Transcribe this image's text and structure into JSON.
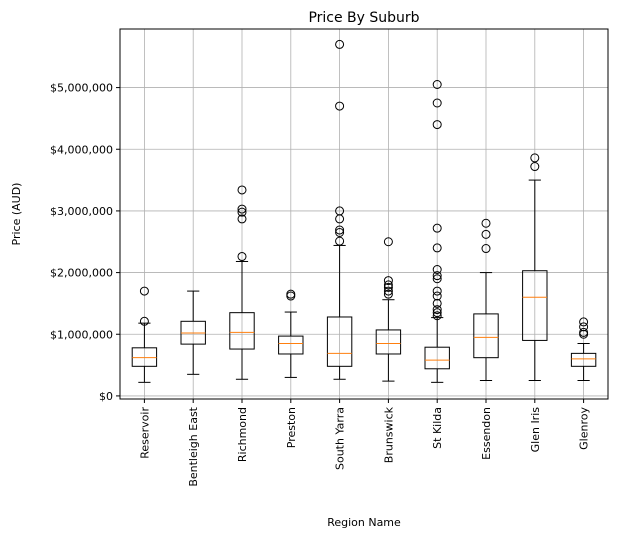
{
  "chart_data": {
    "type": "box",
    "title": "Price By Suburb",
    "xlabel": "Region Name",
    "ylabel": "Price (AUD)",
    "ylim": [
      -50000,
      5950000
    ],
    "yticks": [
      0,
      1000000,
      2000000,
      3000000,
      4000000,
      5000000
    ],
    "ytick_labels": [
      "$0",
      "$1,000,000",
      "$2,000,000",
      "$3,000,000",
      "$4,000,000",
      "$5,000,000"
    ],
    "grid": true,
    "box_color": "#000000",
    "median_color": "#ff7f0e",
    "grid_color": "#b0b0b0",
    "categories": [
      "Reservoir",
      "Bentleigh East",
      "Richmond",
      "Preston",
      "South Yarra",
      "Brunswick",
      "St Kilda",
      "Essendon",
      "Glen Iris",
      "Glenroy"
    ],
    "boxes": [
      {
        "whisker_low": 220000,
        "q1": 480000,
        "median": 620000,
        "q3": 780000,
        "whisker_high": 1180000,
        "outliers": [
          1210000,
          1700000
        ]
      },
      {
        "whisker_low": 350000,
        "q1": 840000,
        "median": 1020000,
        "q3": 1210000,
        "whisker_high": 1700000,
        "outliers": []
      },
      {
        "whisker_low": 270000,
        "q1": 760000,
        "median": 1030000,
        "q3": 1350000,
        "whisker_high": 2180000,
        "outliers": [
          2260000,
          2870000,
          2980000,
          3030000,
          3340000
        ]
      },
      {
        "whisker_low": 300000,
        "q1": 680000,
        "median": 850000,
        "q3": 970000,
        "whisker_high": 1360000,
        "outliers": [
          1620000,
          1650000
        ]
      },
      {
        "whisker_low": 270000,
        "q1": 480000,
        "median": 690000,
        "q3": 1280000,
        "whisker_high": 2440000,
        "outliers": [
          2510000,
          2650000,
          2690000,
          2870000,
          3000000,
          4700000,
          5700000
        ]
      },
      {
        "whisker_low": 240000,
        "q1": 680000,
        "median": 850000,
        "q3": 1070000,
        "whisker_high": 1560000,
        "outliers": [
          1650000,
          1700000,
          1760000,
          1800000,
          1870000,
          2500000
        ]
      },
      {
        "whisker_low": 220000,
        "q1": 440000,
        "median": 580000,
        "q3": 790000,
        "whisker_high": 1270000,
        "outliers": [
          1300000,
          1350000,
          1400000,
          1500000,
          1620000,
          1700000,
          1900000,
          1950000,
          2050000,
          2400000,
          2720000,
          4400000,
          4750000,
          5050000
        ]
      },
      {
        "whisker_low": 250000,
        "q1": 620000,
        "median": 950000,
        "q3": 1330000,
        "whisker_high": 2000000,
        "outliers": [
          2390000,
          2620000,
          2800000
        ]
      },
      {
        "whisker_low": 250000,
        "q1": 900000,
        "median": 1600000,
        "q3": 2030000,
        "whisker_high": 3500000,
        "outliers": [
          3720000,
          3860000
        ]
      },
      {
        "whisker_low": 250000,
        "q1": 480000,
        "median": 600000,
        "q3": 690000,
        "whisker_high": 850000,
        "outliers": [
          1000000,
          1030000,
          1120000,
          1200000
        ]
      }
    ]
  }
}
